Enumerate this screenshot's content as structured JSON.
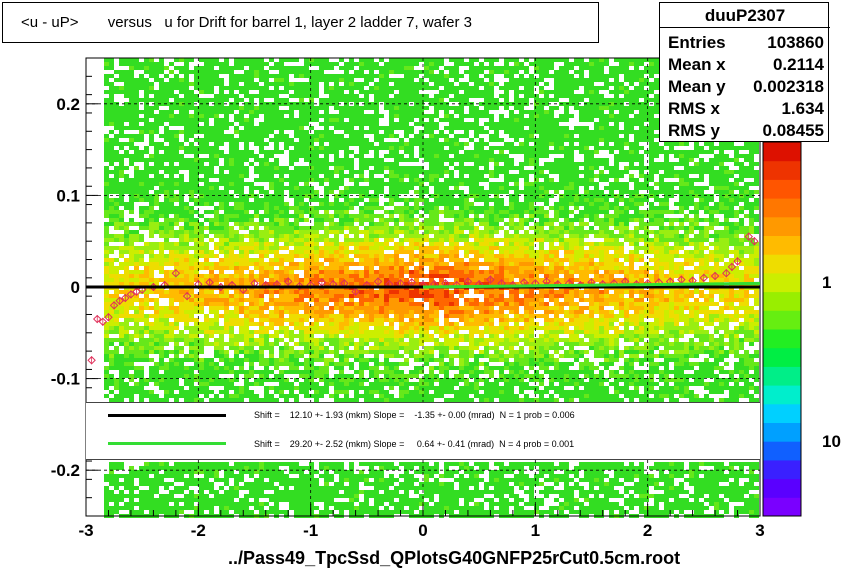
{
  "title": "<u - uP>       versus   u for Drift for barrel 1, layer 2 ladder 7, wafer 3",
  "stats": {
    "name": "duuP2307",
    "rows": [
      {
        "label": "Entries",
        "value": "103860"
      },
      {
        "label": "Mean x",
        "value": "0.2114"
      },
      {
        "label": "Mean y",
        "value": "0.002318"
      },
      {
        "label": "RMS x",
        "value": "1.634"
      },
      {
        "label": "RMS y",
        "value": "0.08455"
      }
    ]
  },
  "legend": [
    {
      "color": "#000000",
      "text": "Shift =    12.10 +- 1.93 (mkm) Slope =    -1.35 +- 0.00 (mrad)  N = 1 prob = 0.006"
    },
    {
      "color": "#33dd33",
      "text": "Shift =    29.20 +- 2.52 (mkm) Slope =     0.64 +- 0.41 (mrad)  N = 4 prob = 0.001"
    }
  ],
  "footer": "../Pass49_TpcSsd_QPlotsG40GNFP25rCut0.5cm.root",
  "chart_data": {
    "type": "heatmap",
    "x_ticks": [
      "-3",
      "-2",
      "-1",
      "0",
      "1",
      "2",
      "3"
    ],
    "y_ticks": [
      "-0.2",
      "-0.1",
      "0",
      "0.1",
      "0.2"
    ],
    "xlim": [
      -3,
      3
    ],
    "ylim": [
      -0.25,
      0.25
    ],
    "z_scale": "log",
    "palette_labels": [
      "1",
      "10"
    ],
    "grid": "dashed",
    "profile_points": [
      [
        -2.95,
        -0.08
      ],
      [
        -2.9,
        -0.035
      ],
      [
        -2.85,
        -0.038
      ],
      [
        -2.8,
        -0.033
      ],
      [
        -2.75,
        -0.02
      ],
      [
        -2.7,
        -0.015
      ],
      [
        -2.65,
        -0.012
      ],
      [
        -2.6,
        -0.008
      ],
      [
        -2.55,
        -0.005
      ],
      [
        -2.5,
        -0.003
      ],
      [
        -2.4,
        0.0
      ],
      [
        -2.3,
        0.002
      ],
      [
        -2.2,
        0.015
      ],
      [
        -2.1,
        -0.01
      ],
      [
        -2.0,
        0.003
      ],
      [
        -1.9,
        0.005
      ],
      [
        -1.8,
        0.0
      ],
      [
        -1.7,
        0.002
      ],
      [
        -1.6,
        -0.003
      ],
      [
        -1.5,
        0.004
      ],
      [
        -1.4,
        0.002
      ],
      [
        -1.3,
        0.003
      ],
      [
        -1.2,
        0.006
      ],
      [
        -1.1,
        0.001
      ],
      [
        -1.0,
        0.002
      ],
      [
        -0.9,
        0.005
      ],
      [
        -0.8,
        0.003
      ],
      [
        -0.7,
        0.004
      ],
      [
        -0.6,
        -0.005
      ],
      [
        -0.5,
        0.002
      ],
      [
        -0.4,
        0.006
      ],
      [
        -0.3,
        0.003
      ],
      [
        -0.2,
        0.004
      ],
      [
        -0.1,
        0.005
      ],
      [
        0.0,
        0.002
      ],
      [
        0.1,
        0.003
      ],
      [
        0.2,
        0.004
      ],
      [
        0.3,
        0.002
      ],
      [
        0.4,
        0.006
      ],
      [
        0.5,
        0.003
      ],
      [
        0.6,
        0.008
      ],
      [
        0.7,
        0.004
      ],
      [
        0.8,
        0.002
      ],
      [
        0.9,
        0.005
      ],
      [
        1.0,
        0.004
      ],
      [
        1.1,
        0.006
      ],
      [
        1.2,
        0.003
      ],
      [
        1.3,
        0.004
      ],
      [
        1.4,
        0.002
      ],
      [
        1.5,
        0.005
      ],
      [
        1.6,
        0.003
      ],
      [
        1.7,
        0.004
      ],
      [
        1.8,
        0.006
      ],
      [
        1.9,
        0.003
      ],
      [
        2.0,
        0.004
      ],
      [
        2.1,
        0.005
      ],
      [
        2.2,
        0.006
      ],
      [
        2.3,
        0.008
      ],
      [
        2.4,
        0.007
      ],
      [
        2.5,
        0.01
      ],
      [
        2.6,
        0.012
      ],
      [
        2.7,
        0.015
      ],
      [
        2.75,
        0.022
      ],
      [
        2.8,
        0.028
      ],
      [
        2.9,
        0.055
      ],
      [
        2.95,
        0.05
      ]
    ],
    "fit_lines": [
      {
        "x": [
          -3,
          3
        ],
        "y": [
          0.0,
          0.0
        ]
      },
      {
        "x": [
          0,
          3
        ],
        "y": [
          0.0,
          0.004
        ]
      }
    ]
  }
}
